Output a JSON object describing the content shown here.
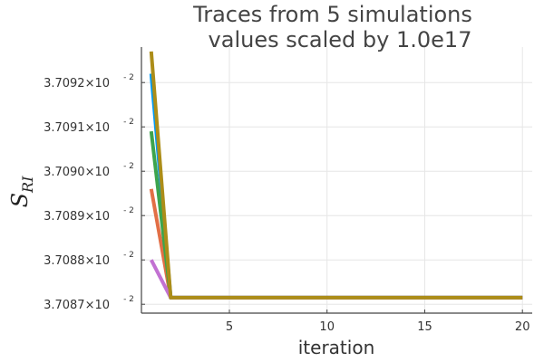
{
  "chart_data": {
    "type": "line",
    "title": [
      "Traces from 5 simulations",
      "values scaled by 1.0e17"
    ],
    "xlabel": "iteration",
    "ylabel": "S",
    "ylabel_subscript": "RI",
    "xlim": [
      0.5,
      20.5
    ],
    "ylim": [
      0.0370868,
      0.0370928
    ],
    "xticks": [
      5,
      10,
      15,
      20
    ],
    "xtick_labels": [
      "5",
      "10",
      "15",
      "20"
    ],
    "yticks": [
      0.037087,
      0.037088,
      0.037089,
      0.03709,
      0.037091,
      0.037092
    ],
    "ytick_labels": [
      {
        "mantissa": "3.7087×10",
        "exponent": "- 2"
      },
      {
        "mantissa": "3.7088×10",
        "exponent": "- 2"
      },
      {
        "mantissa": "3.7089×10",
        "exponent": "- 2"
      },
      {
        "mantissa": "3.7090×10",
        "exponent": "- 2"
      },
      {
        "mantissa": "3.7091×10",
        "exponent": "- 2"
      },
      {
        "mantissa": "3.7092×10",
        "exponent": "- 2"
      }
    ],
    "grid": true,
    "legend": "none",
    "x": [
      1,
      2,
      3,
      4,
      5,
      6,
      7,
      8,
      9,
      10,
      11,
      12,
      13,
      14,
      15,
      16,
      17,
      18,
      19,
      20
    ],
    "series": [
      {
        "color": "#009af9",
        "values": [
          0.0370922,
          0.03708715,
          0.03708715,
          0.03708715,
          0.03708715,
          0.03708715,
          0.03708715,
          0.03708715,
          0.03708715,
          0.03708715,
          0.03708715,
          0.03708715,
          0.03708715,
          0.03708715,
          0.03708715,
          0.03708715,
          0.03708715,
          0.03708715,
          0.03708715,
          0.03708715
        ]
      },
      {
        "color": "#e26f46",
        "values": [
          0.0370896,
          0.03708715,
          0.03708715,
          0.03708715,
          0.03708715,
          0.03708715,
          0.03708715,
          0.03708715,
          0.03708715,
          0.03708715,
          0.03708715,
          0.03708715,
          0.03708715,
          0.03708715,
          0.03708715,
          0.03708715,
          0.03708715,
          0.03708715,
          0.03708715,
          0.03708715
        ]
      },
      {
        "color": "#3da44d",
        "values": [
          0.0370909,
          0.03708715,
          0.03708715,
          0.03708715,
          0.03708715,
          0.03708715,
          0.03708715,
          0.03708715,
          0.03708715,
          0.03708715,
          0.03708715,
          0.03708715,
          0.03708715,
          0.03708715,
          0.03708715,
          0.03708715,
          0.03708715,
          0.03708715,
          0.03708715,
          0.03708715
        ]
      },
      {
        "color": "#c271d2",
        "values": [
          0.037088,
          0.03708715,
          0.03708715,
          0.03708715,
          0.03708715,
          0.03708715,
          0.03708715,
          0.03708715,
          0.03708715,
          0.03708715,
          0.03708715,
          0.03708715,
          0.03708715,
          0.03708715,
          0.03708715,
          0.03708715,
          0.03708715,
          0.03708715,
          0.03708715,
          0.03708715
        ]
      },
      {
        "color": "#ac8d18",
        "values": [
          0.0370927,
          0.03708715,
          0.03708715,
          0.03708715,
          0.03708715,
          0.03708715,
          0.03708715,
          0.03708715,
          0.03708715,
          0.03708715,
          0.03708715,
          0.03708715,
          0.03708715,
          0.03708715,
          0.03708715,
          0.03708715,
          0.03708715,
          0.03708715,
          0.03708715,
          0.03708715
        ]
      }
    ]
  }
}
